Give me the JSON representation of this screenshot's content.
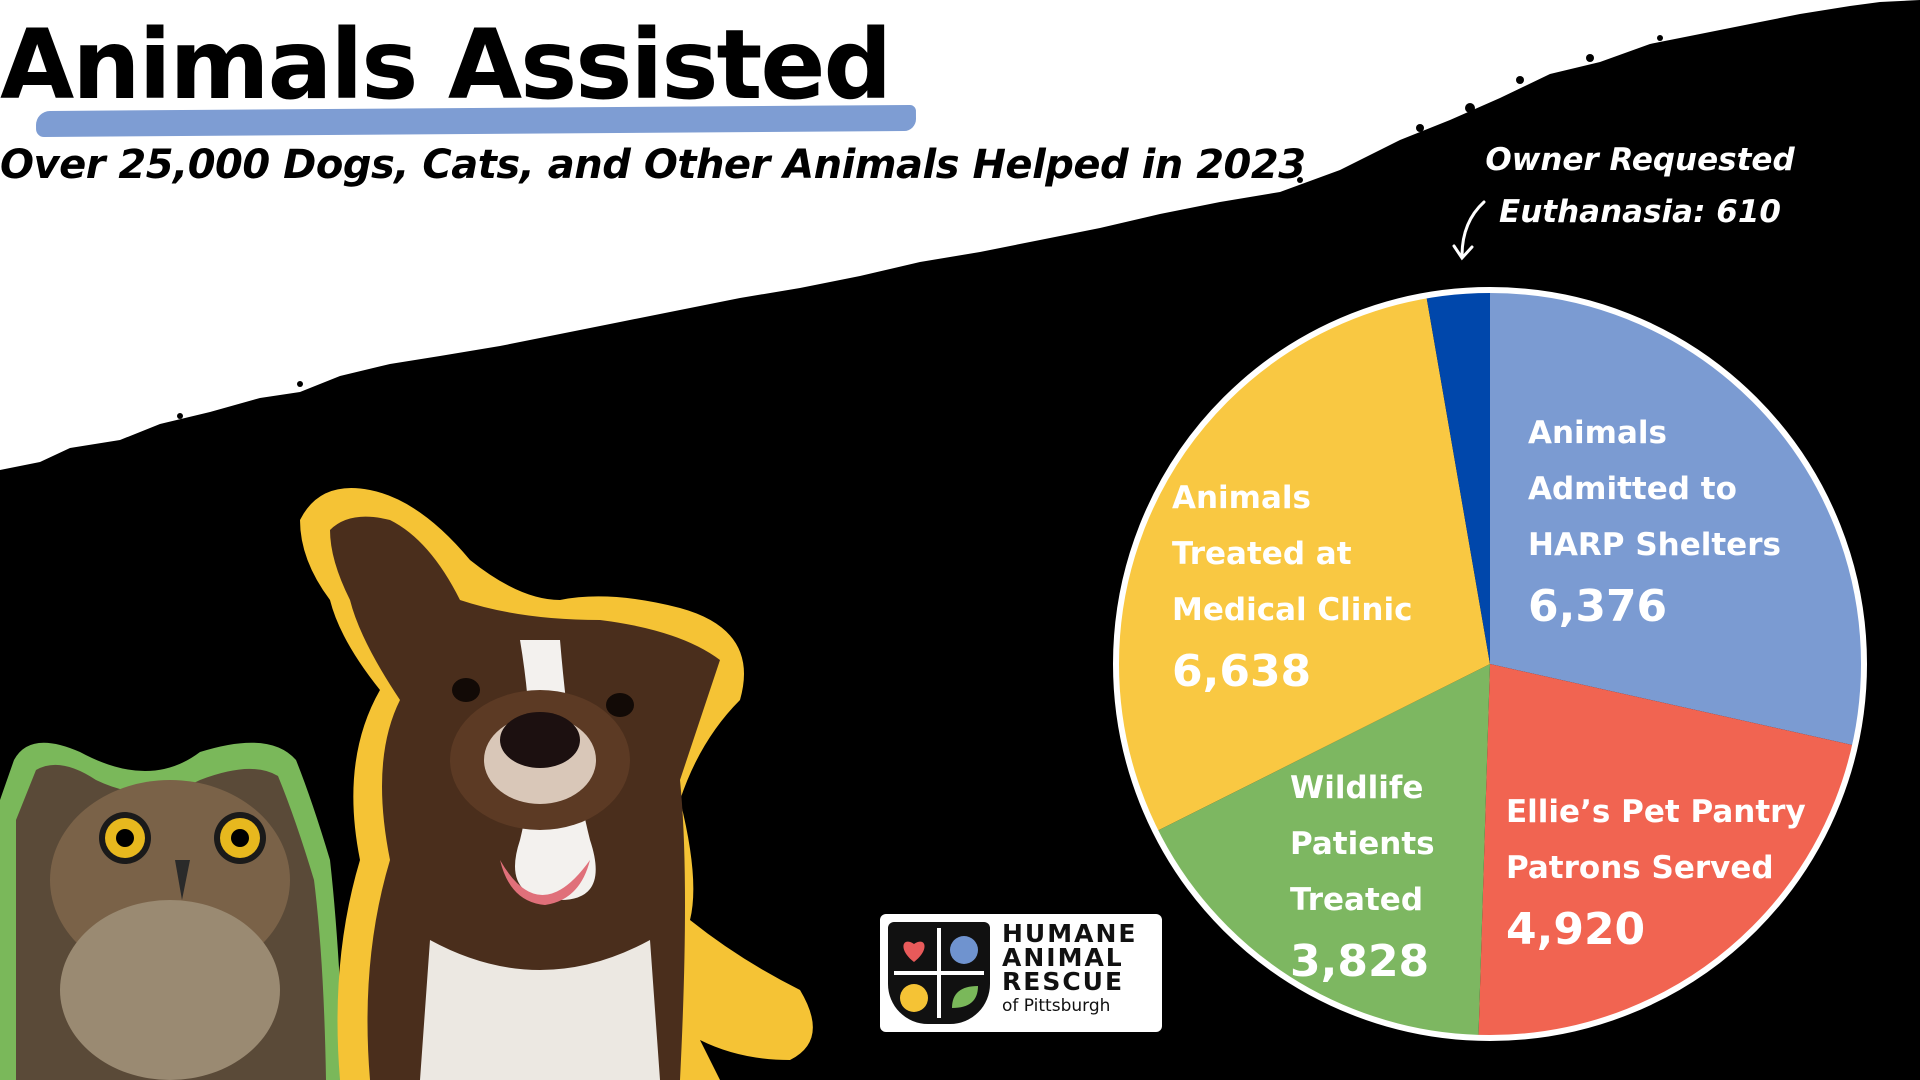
{
  "header": {
    "title": "Animals Assisted",
    "subtitle": "Over 25,000 Dogs, Cats, and Other Animals Helped in 2023"
  },
  "colors": {
    "background_top": "#ffffff",
    "background_bottom": "#000000",
    "title_underline": "#7e9dd3",
    "owl_outline": "#7ab85a",
    "dog_outline": "#f5c335"
  },
  "chart_data": {
    "type": "pie",
    "title": "",
    "slices": [
      {
        "label_lines": [
          "Animals",
          "Admitted to",
          "HARP Shelters"
        ],
        "value": 6376,
        "value_text": "6,376",
        "color": "#7b9bd2"
      },
      {
        "label_lines": [
          "Ellie’s Pet Pantry",
          "Patrons Served"
        ],
        "value": 4920,
        "value_text": "4,920",
        "color": "#f16451"
      },
      {
        "label_lines": [
          "Wildlife",
          "Patients",
          "Treated"
        ],
        "value": 3828,
        "value_text": "3,828",
        "color": "#7db761"
      },
      {
        "label_lines": [
          "Animals",
          "Treated at",
          "Medical Clinic"
        ],
        "value": 6638,
        "value_text": "6,638",
        "color": "#f9c842"
      },
      {
        "label_lines": [
          "Owner Requested",
          "Euthanasia: 610"
        ],
        "value": 610,
        "value_text": "610",
        "color": "#0047ab"
      }
    ],
    "start_angle_deg": 0,
    "direction": "clockwise"
  },
  "callout": {
    "line1": "Owner Requested",
    "line2": "Euthanasia: 610"
  },
  "labels": {
    "shelters": {
      "l1": "Animals",
      "l2": "Admitted to",
      "l3": "HARP Shelters",
      "value": "6,376"
    },
    "pantry": {
      "l1": "Ellie’s Pet Pantry",
      "l2": "Patrons Served",
      "value": "4,920"
    },
    "wildlife": {
      "l1": "Wildlife",
      "l2": "Patients",
      "l3": "Treated",
      "value": "3,828"
    },
    "clinic": {
      "l1": "Animals",
      "l2": "Treated at",
      "l3": "Medical Clinic",
      "value": "6,638"
    }
  },
  "logo": {
    "line1": "HUMANE",
    "line2": "ANIMAL",
    "line3": "RESCUE",
    "line4": "of Pittsburgh",
    "icons": [
      "heart-icon",
      "paw-icon",
      "cat-face-icon",
      "leaf-icon"
    ]
  },
  "photos": {
    "owl": "owl-photo",
    "dog": "dog-photo"
  }
}
